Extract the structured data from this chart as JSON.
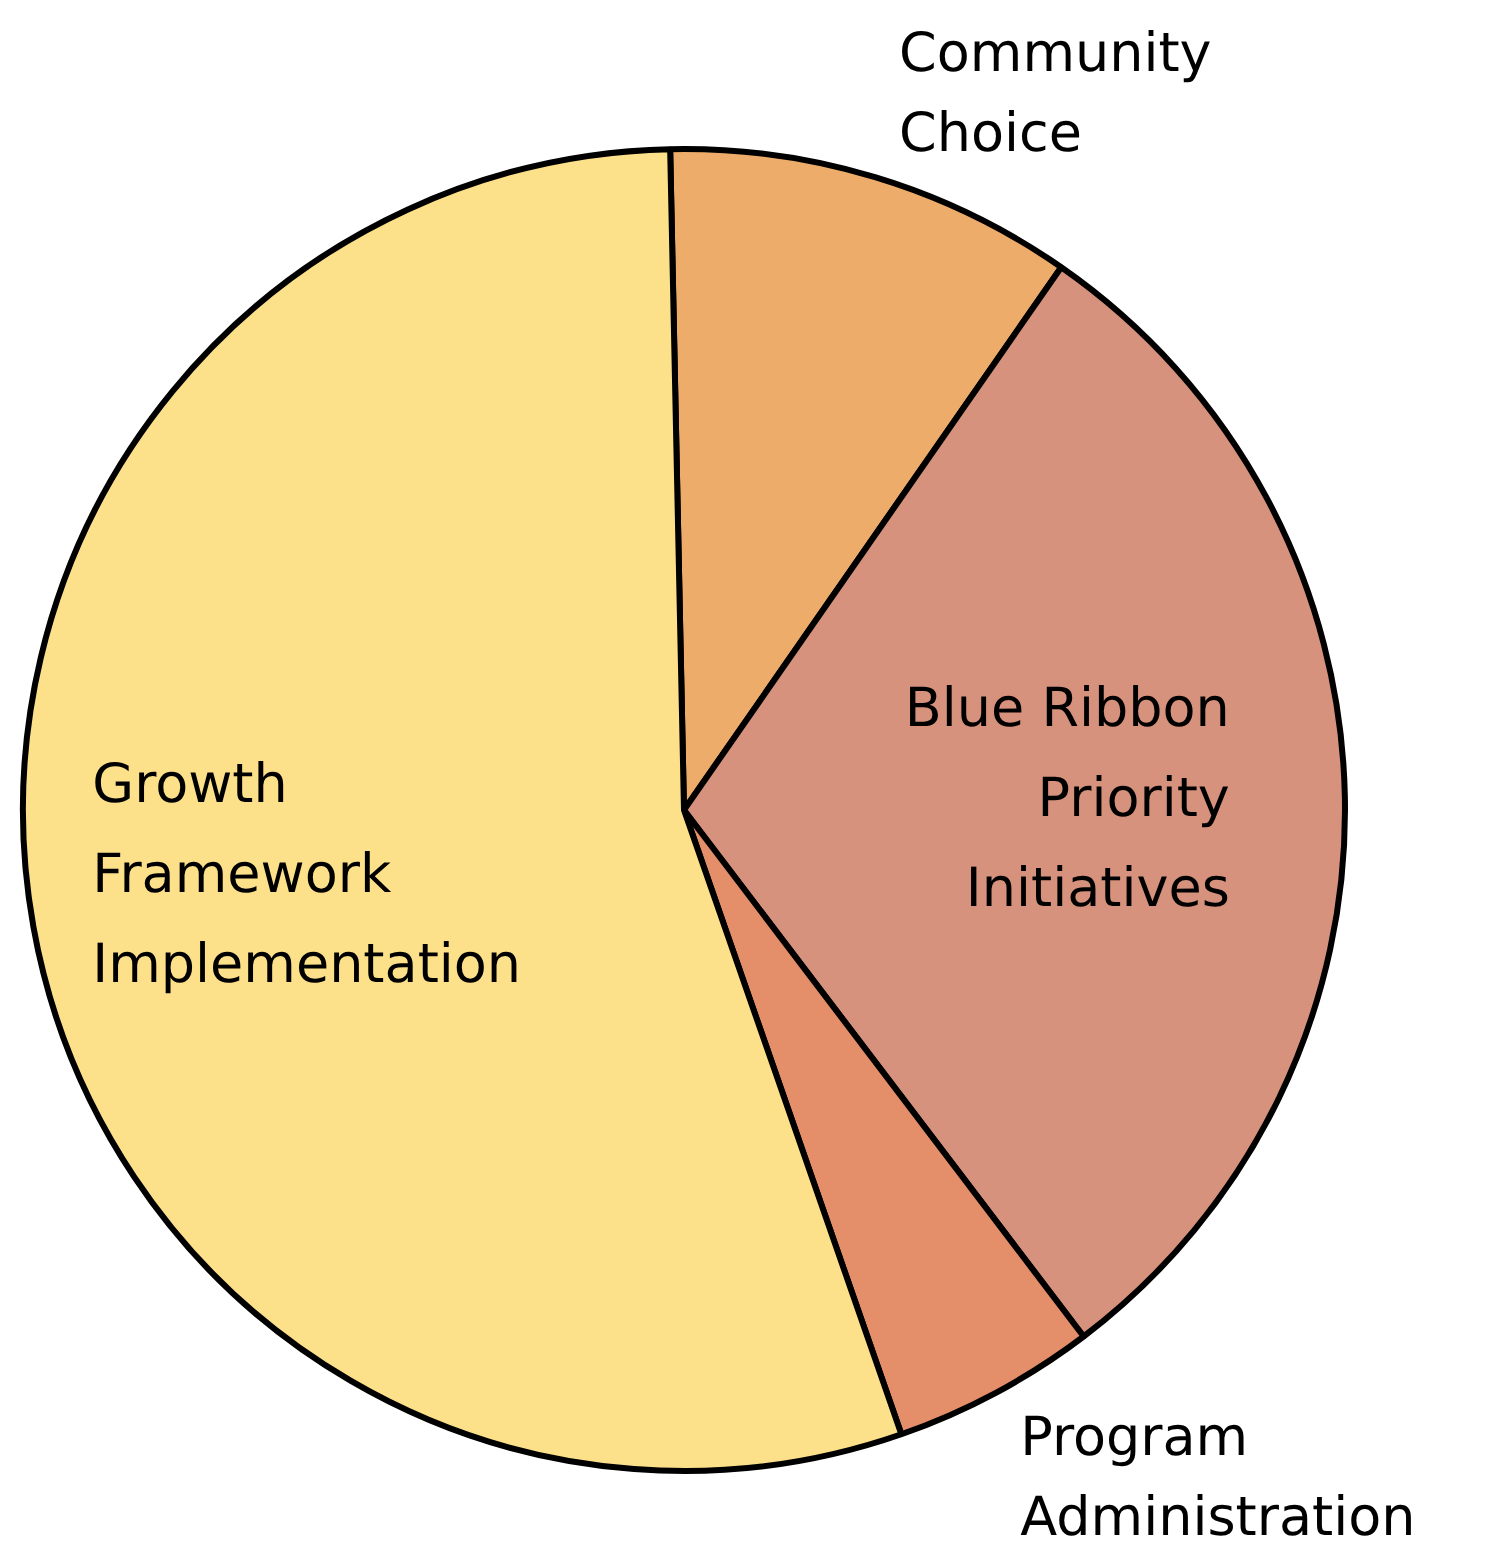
{
  "chart_data": {
    "type": "pie",
    "categories": [
      "Community Choice",
      "Blue Ribbon Priority Initiatives",
      "Program Administration",
      "Growth Framework Implementation"
    ],
    "values": [
      10,
      30,
      5,
      55
    ],
    "colors": [
      "#edac6a",
      "#d6927c",
      "#e48f6a",
      "#fce08a"
    ]
  }
}
